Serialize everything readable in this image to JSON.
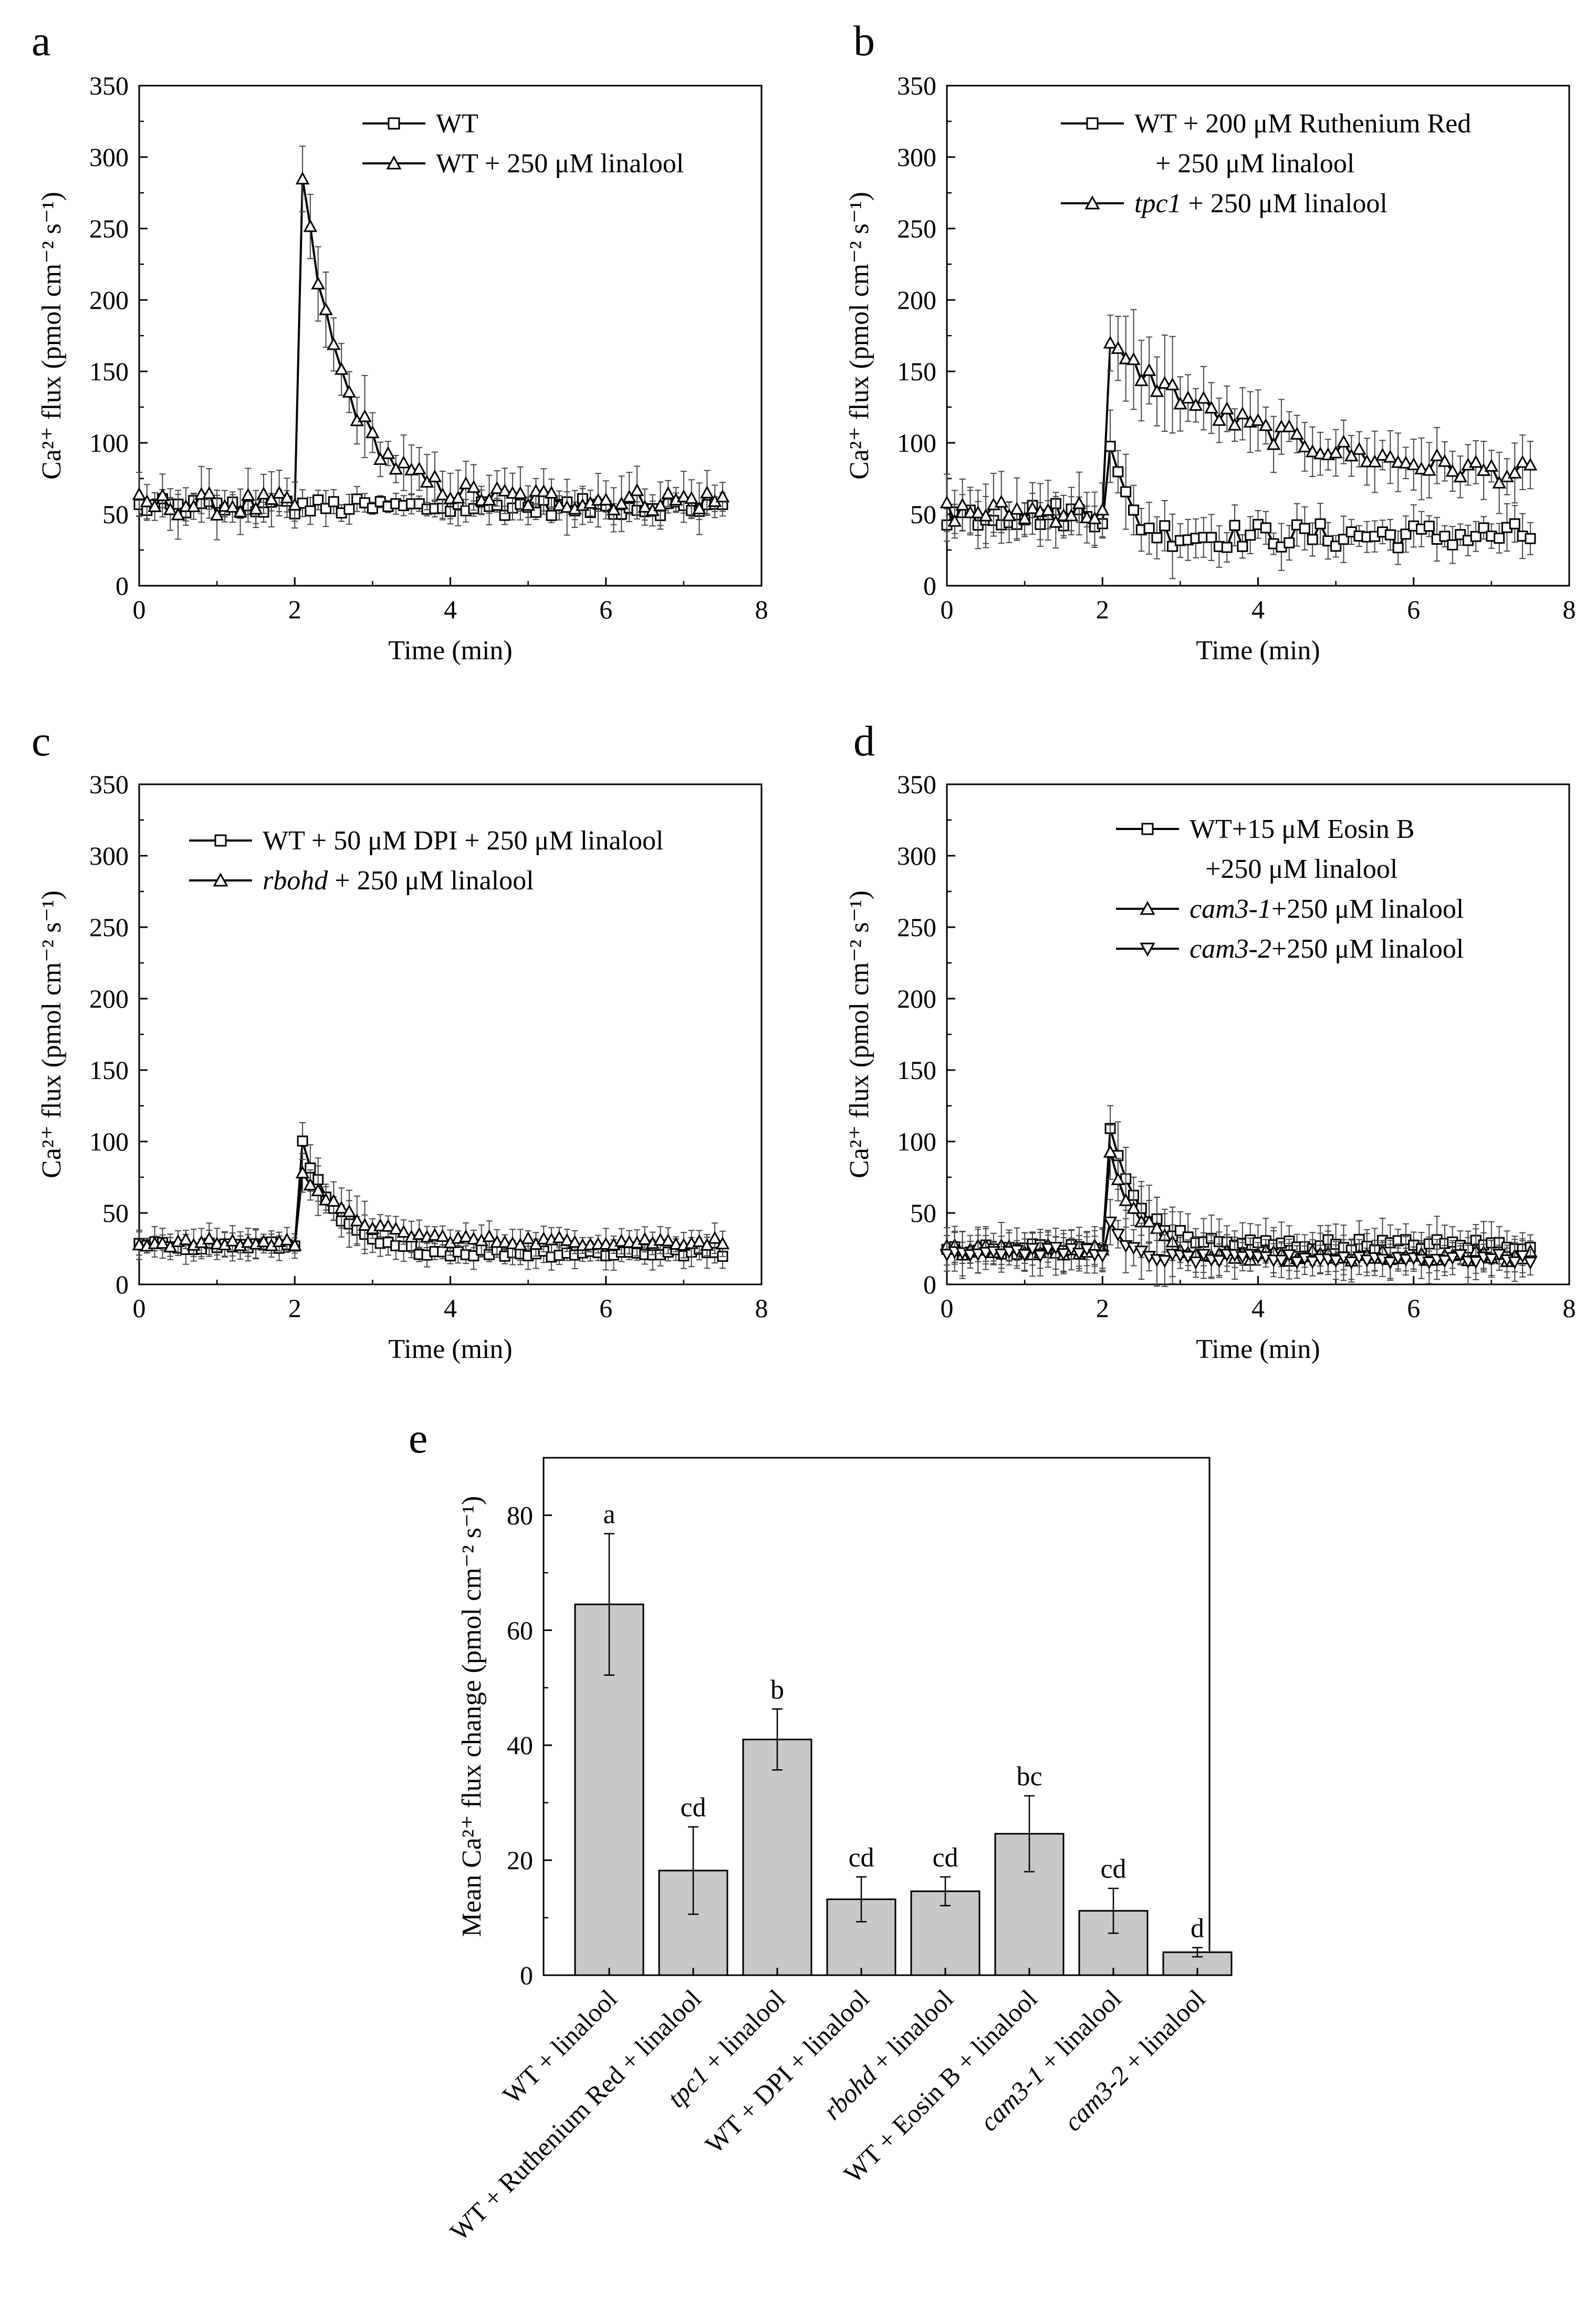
{
  "chart_data": [
    {
      "type": "line",
      "panel_label": "a",
      "xlabel": "Time (min)",
      "ylabel": "Ca²⁺ flux (pmol cm⁻² s⁻¹)",
      "xlim": [
        0,
        8
      ],
      "ylim": [
        0,
        350
      ],
      "xticks": [
        "0",
        "2",
        "4",
        "6",
        "8"
      ],
      "yticks": [
        "0",
        "50",
        "100",
        "150",
        "200",
        "250",
        "300",
        "350"
      ],
      "legend": "top-right",
      "series": [
        {
          "name": "WT",
          "marker": "square",
          "baseline": 55,
          "noise": 6,
          "peak": 0,
          "decay": 0.5,
          "err": 6,
          "tail": 55
        },
        {
          "name": "WT + 250 μM linalool",
          "marker": "triangle-up",
          "baseline": 57,
          "noise": 8,
          "peak": 282,
          "decay": 0.55,
          "err": 14,
          "tail": 60
        }
      ]
    },
    {
      "type": "line",
      "panel_label": "b",
      "xlabel": "Time (min)",
      "ylabel": "Ca²⁺ flux (pmol cm⁻² s⁻¹)",
      "xlim": [
        0,
        8
      ],
      "ylim": [
        0,
        350
      ],
      "xticks": [
        "0",
        "2",
        "4",
        "6",
        "8"
      ],
      "yticks": [
        "0",
        "50",
        "100",
        "150",
        "200",
        "250",
        "300",
        "350"
      ],
      "legend": "top-right",
      "series": [
        {
          "name": "WT + 200 μM Ruthenium Red",
          "name_line2": "+ 250 μM linalool",
          "marker": "square",
          "baseline": 50,
          "noise": 9,
          "peak": 103,
          "decay": 0.2,
          "err": 12,
          "tail": 35
        },
        {
          "name": "tpc1",
          "name_suffix": " + 250 μM linalool",
          "name_italic": true,
          "marker": "triangle-up",
          "baseline": 52,
          "noise": 8,
          "peak": 165,
          "decay": 2.2,
          "err": 16,
          "tail": 70
        }
      ]
    },
    {
      "type": "line",
      "panel_label": "c",
      "xlabel": "Time (min)",
      "ylabel": "Ca²⁺ flux (pmol cm⁻² s⁻¹)",
      "xlim": [
        0,
        8
      ],
      "ylim": [
        0,
        350
      ],
      "xticks": [
        "0",
        "2",
        "4",
        "6",
        "8"
      ],
      "yticks": [
        "0",
        "50",
        "100",
        "150",
        "200",
        "250",
        "300",
        "350"
      ],
      "legend": "top-right",
      "series": [
        {
          "name": "WT + 50 μM DPI + 250 μM linalool",
          "marker": "square",
          "baseline": 27,
          "noise": 3,
          "peak": 102,
          "decay": 0.4,
          "err": 8,
          "tail": 22
        },
        {
          "name": "rbohd",
          "name_suffix": " + 250 μM linalool",
          "name_italic": true,
          "marker": "triangle-up",
          "baseline": 29,
          "noise": 3,
          "peak": 80,
          "decay": 0.6,
          "err": 8,
          "tail": 30
        }
      ]
    },
    {
      "type": "line",
      "panel_label": "d",
      "xlabel": "Time (min)",
      "ylabel": "Ca²⁺ flux (pmol cm⁻² s⁻¹)",
      "xlim": [
        0,
        8
      ],
      "ylim": [
        0,
        350
      ],
      "xticks": [
        "0",
        "2",
        "4",
        "6",
        "8"
      ],
      "yticks": [
        "0",
        "50",
        "100",
        "150",
        "200",
        "250",
        "300",
        "350"
      ],
      "legend": "top-right",
      "series": [
        {
          "name": "WT+15 μM Eosin B",
          "name_line2": "+250 μM linalool",
          "marker": "square",
          "baseline": 25,
          "noise": 4,
          "peak": 108,
          "decay": 0.35,
          "err": 12,
          "tail": 28
        },
        {
          "name": "cam3-1",
          "name_suffix": "+250 μM linalool",
          "name_italic": true,
          "marker": "triangle-up",
          "baseline": 24,
          "noise": 4,
          "peak": 90,
          "decay": 0.4,
          "err": 12,
          "tail": 20
        },
        {
          "name": "cam3-2",
          "name_suffix": "+250 μM linalool",
          "name_italic": true,
          "marker": "triangle-down",
          "baseline": 23,
          "noise": 3,
          "peak": 42,
          "decay": 0.2,
          "err": 10,
          "tail": 18
        }
      ]
    },
    {
      "type": "bar",
      "panel_label": "e",
      "ylabel": "Mean Ca²⁺ flux change (pmol cm⁻² s⁻¹)",
      "ylim": [
        0,
        90
      ],
      "yticks": [
        "0",
        "20",
        "40",
        "60",
        "80"
      ],
      "categories": [
        {
          "label": "WT + linalool",
          "italic": "",
          "rest": ""
        },
        {
          "label": "WT + Ruthenium Red + linalool",
          "italic": "",
          "rest": ""
        },
        {
          "label": "tpc1 + linalool",
          "italic": "tpc1",
          "rest": " + linalool"
        },
        {
          "label": "WT + DPI + linalool",
          "italic": "",
          "rest": ""
        },
        {
          "label": "rbohd + linalool",
          "italic": "rbohd",
          "rest": " + linalool"
        },
        {
          "label": "WT + Eosin B + linalool",
          "italic": "",
          "rest": ""
        },
        {
          "label": "cam3-1 + linalool",
          "italic": "cam3-1",
          "rest": " + linalool"
        },
        {
          "label": "cam3-2 + linalool",
          "italic": "cam3-2",
          "rest": " + linalool"
        }
      ],
      "values": [
        64.5,
        18.2,
        41.0,
        13.2,
        14.6,
        24.6,
        11.2,
        4.0
      ],
      "errors": [
        12.3,
        7.6,
        5.3,
        3.9,
        2.5,
        6.6,
        3.9,
        0.8
      ],
      "letters": [
        "a",
        "cd",
        "b",
        "cd",
        "cd",
        "bc",
        "cd",
        "d"
      ],
      "bar_color": "#c8c8c8"
    }
  ]
}
